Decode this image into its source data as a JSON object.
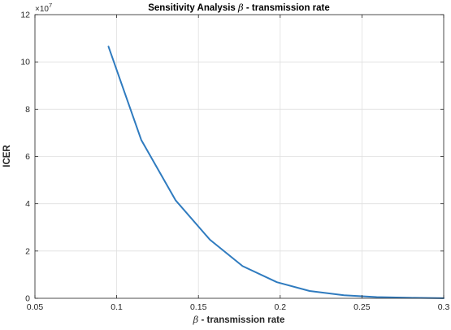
{
  "chart_data": {
    "type": "line",
    "title_symbol": "β",
    "title_text": " - transmission rate",
    "title_prefix": "Sensitivity Analysis ",
    "xlabel_symbol": "β",
    "xlabel_text": " - transmission rate",
    "ylabel": "ICER",
    "y_exponent_base": "×10",
    "y_exponent_power": "7",
    "xlim": [
      0.05,
      0.3
    ],
    "ylim": [
      0,
      12
    ],
    "x_ticks": [
      "0.05",
      "0.1",
      "0.15",
      "0.2",
      "0.25",
      "0.3"
    ],
    "y_ticks": [
      "0",
      "2",
      "4",
      "6",
      "8",
      "10",
      "12"
    ],
    "grid": true,
    "series": [
      {
        "color": "#2f7bbf",
        "x": [
          0.095,
          0.115,
          0.136,
          0.157,
          0.177,
          0.198,
          0.218,
          0.239,
          0.259,
          0.28,
          0.3
        ],
        "y": [
          10.65,
          6.7,
          4.15,
          2.48,
          1.36,
          0.68,
          0.31,
          0.13,
          0.05,
          0.02,
          0.005
        ]
      }
    ]
  }
}
